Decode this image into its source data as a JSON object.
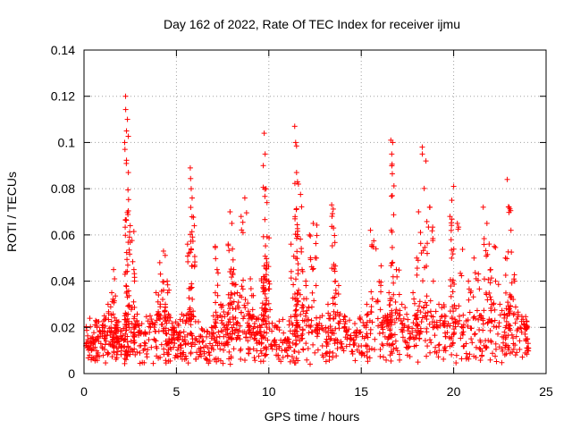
{
  "chart_data": {
    "type": "scatter",
    "title": "Day 162 of 2022, Rate Of TEC Index for receiver ijmu",
    "xlabel": "GPS time / hours",
    "ylabel": "ROTI / TECUs",
    "xlim": [
      0,
      25
    ],
    "ylim": [
      0,
      0.14
    ],
    "x_ticks": [
      "0",
      "5",
      "10",
      "15",
      "20",
      "25"
    ],
    "x_tick_values": [
      0,
      5,
      10,
      15,
      20,
      25
    ],
    "y_ticks": [
      "0",
      "0.02",
      "0.04",
      "0.06",
      "0.08",
      "0.1",
      "0.12",
      "0.14"
    ],
    "y_tick_values": [
      0,
      0.02,
      0.04,
      0.06,
      0.08,
      0.1,
      0.12,
      0.14
    ],
    "grid": true,
    "marker": "plus",
    "color": "#ff0000",
    "series": [
      {
        "name": "ROTI",
        "note": "representative sample of the dense point cloud (estimated from the plot)",
        "x": [
          0.1,
          0.3,
          0.5,
          0.7,
          0.9,
          1.1,
          1.3,
          1.5,
          1.6,
          1.7,
          1.8,
          2.0,
          2.2,
          2.25,
          2.3,
          2.35,
          2.4,
          2.5,
          2.7,
          2.75,
          3.0,
          3.3,
          3.6,
          3.9,
          4.1,
          4.3,
          4.4,
          4.5,
          4.6,
          4.8,
          5.0,
          5.2,
          5.4,
          5.6,
          5.75,
          5.8,
          5.85,
          6.0,
          6.3,
          6.6,
          6.9,
          7.1,
          7.2,
          7.4,
          7.6,
          7.8,
          7.9,
          8.0,
          8.1,
          8.3,
          8.5,
          8.7,
          8.9,
          9.0,
          9.2,
          9.4,
          9.6,
          9.7,
          9.75,
          9.8,
          9.85,
          9.9,
          10.1,
          10.4,
          10.7,
          11.0,
          11.2,
          11.4,
          11.45,
          11.5,
          11.55,
          11.6,
          11.8,
          12.0,
          12.2,
          12.4,
          12.6,
          12.9,
          13.2,
          13.4,
          13.5,
          13.6,
          13.8,
          14.1,
          14.4,
          14.7,
          15.0,
          15.3,
          15.5,
          15.8,
          16.1,
          16.3,
          16.5,
          16.6,
          16.65,
          16.7,
          16.9,
          17.2,
          17.5,
          17.8,
          18.0,
          18.1,
          18.3,
          18.5,
          18.7,
          18.9,
          19.2,
          19.5,
          19.8,
          19.9,
          20.0,
          20.2,
          20.5,
          20.8,
          21.1,
          21.4,
          21.6,
          21.8,
          22.0,
          22.2,
          22.5,
          22.8,
          22.9,
          23.0,
          23.1,
          23.3,
          23.6,
          23.9,
          24.0
        ],
        "y": [
          0.012,
          0.008,
          0.015,
          0.02,
          0.018,
          0.025,
          0.03,
          0.035,
          0.045,
          0.02,
          0.015,
          0.012,
          0.1,
          0.12,
          0.105,
          0.11,
          0.087,
          0.064,
          0.045,
          0.02,
          0.012,
          0.018,
          0.02,
          0.035,
          0.048,
          0.053,
          0.03,
          0.04,
          0.015,
          0.02,
          0.018,
          0.012,
          0.025,
          0.056,
          0.089,
          0.08,
          0.076,
          0.015,
          0.01,
          0.012,
          0.02,
          0.055,
          0.045,
          0.03,
          0.02,
          0.056,
          0.07,
          0.065,
          0.045,
          0.035,
          0.068,
          0.076,
          0.02,
          0.041,
          0.015,
          0.02,
          0.041,
          0.09,
          0.104,
          0.095,
          0.08,
          0.074,
          0.012,
          0.008,
          0.01,
          0.015,
          0.056,
          0.107,
          0.1,
          0.087,
          0.083,
          0.082,
          0.045,
          0.04,
          0.06,
          0.065,
          0.02,
          0.012,
          0.03,
          0.073,
          0.063,
          0.04,
          0.025,
          0.02,
          0.015,
          0.018,
          0.012,
          0.03,
          0.062,
          0.054,
          0.02,
          0.025,
          0.035,
          0.101,
          0.095,
          0.1,
          0.045,
          0.03,
          0.02,
          0.035,
          0.05,
          0.07,
          0.098,
          0.092,
          0.072,
          0.04,
          0.03,
          0.025,
          0.068,
          0.075,
          0.081,
          0.065,
          0.02,
          0.04,
          0.05,
          0.025,
          0.072,
          0.065,
          0.045,
          0.055,
          0.03,
          0.05,
          0.084,
          0.072,
          0.062,
          0.04,
          0.02,
          0.015,
          0.01
        ]
      }
    ]
  }
}
